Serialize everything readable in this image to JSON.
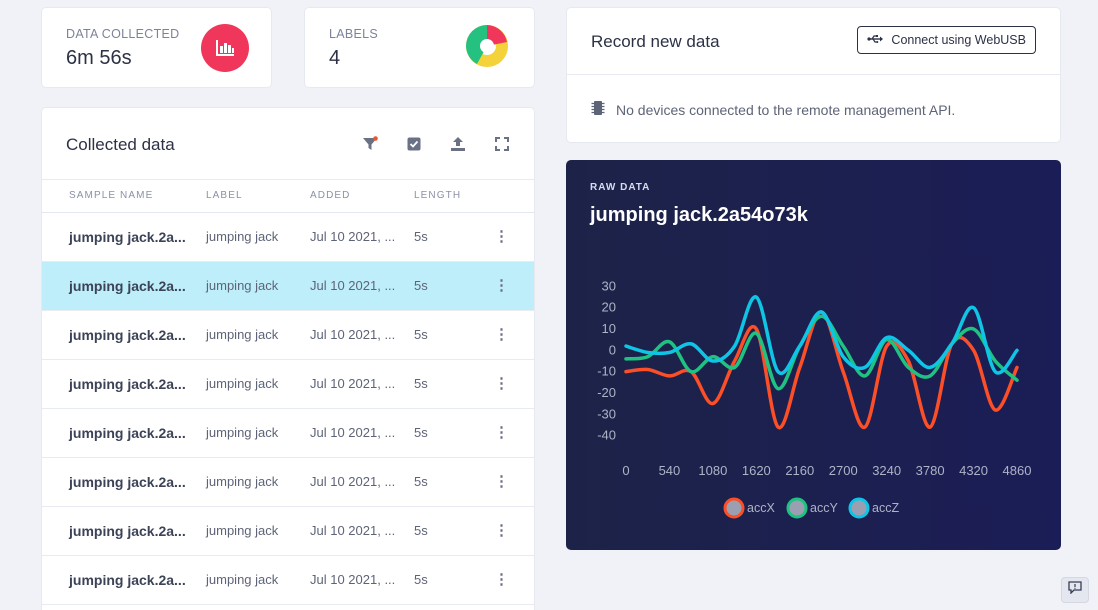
{
  "stats": {
    "data_collected": {
      "label": "DATA COLLECTED",
      "value": "6m 56s",
      "icon": "bar-chart-icon",
      "color": "#f0365a"
    },
    "labels": {
      "label": "LABELS",
      "value": "4",
      "icon": "donut-chart-icon"
    }
  },
  "collected": {
    "title": "Collected data",
    "tools": [
      "filter-icon",
      "select-checkbox-icon",
      "upload-icon",
      "expand-icon"
    ],
    "columns": [
      "SAMPLE NAME",
      "LABEL",
      "ADDED",
      "LENGTH"
    ],
    "rows": [
      {
        "name": "jumping jack.2a...",
        "label": "jumping jack",
        "added": "Jul 10 2021, ...",
        "length": "5s"
      },
      {
        "name": "jumping jack.2a...",
        "label": "jumping jack",
        "added": "Jul 10 2021, ...",
        "length": "5s"
      },
      {
        "name": "jumping jack.2a...",
        "label": "jumping jack",
        "added": "Jul 10 2021, ...",
        "length": "5s"
      },
      {
        "name": "jumping jack.2a...",
        "label": "jumping jack",
        "added": "Jul 10 2021, ...",
        "length": "5s"
      },
      {
        "name": "jumping jack.2a...",
        "label": "jumping jack",
        "added": "Jul 10 2021, ...",
        "length": "5s"
      },
      {
        "name": "jumping jack.2a...",
        "label": "jumping jack",
        "added": "Jul 10 2021, ...",
        "length": "5s"
      },
      {
        "name": "jumping jack.2a...",
        "label": "jumping jack",
        "added": "Jul 10 2021, ...",
        "length": "5s"
      },
      {
        "name": "jumping jack.2a...",
        "label": "jumping jack",
        "added": "Jul 10 2021, ...",
        "length": "5s"
      }
    ],
    "selected_row": 1
  },
  "record": {
    "title": "Record new data",
    "webusb_button": "Connect using WebUSB",
    "status": "No devices connected to the remote management API."
  },
  "raw": {
    "kicker": "RAW DATA",
    "title": "jumping jack.2a54o73k"
  },
  "chart_data": {
    "type": "line",
    "x": [
      0,
      270,
      540,
      810,
      1080,
      1350,
      1620,
      1890,
      2160,
      2430,
      2700,
      2970,
      3240,
      3510,
      3780,
      4050,
      4320,
      4590,
      4860
    ],
    "xticks": [
      0,
      540,
      1080,
      1620,
      2160,
      2700,
      3240,
      3780,
      4320,
      4860
    ],
    "yticks": [
      30,
      20,
      10,
      0,
      -10,
      -20,
      -30,
      -40
    ],
    "ylim": [
      -43,
      33
    ],
    "xlim": [
      0,
      4860
    ],
    "legend_position": "bottom",
    "series": [
      {
        "name": "accX",
        "color": "#fc4e27",
        "values": [
          -10,
          -9,
          -12,
          -10,
          -25,
          -5,
          10,
          -36,
          -8,
          18,
          -10,
          -36,
          2,
          -5,
          -36,
          3,
          0,
          -28,
          -8
        ]
      },
      {
        "name": "accY",
        "color": "#1fc381",
        "values": [
          -4,
          -3,
          4,
          -10,
          -3,
          -8,
          8,
          -18,
          2,
          16,
          2,
          -12,
          5,
          -8,
          -12,
          3,
          10,
          -5,
          -14
        ]
      },
      {
        "name": "accZ",
        "color": "#0fc5e6",
        "values": [
          2,
          -1,
          -1,
          3,
          -5,
          2,
          25,
          -10,
          2,
          18,
          -3,
          -8,
          6,
          0,
          -8,
          3,
          20,
          -10,
          0
        ]
      }
    ]
  }
}
